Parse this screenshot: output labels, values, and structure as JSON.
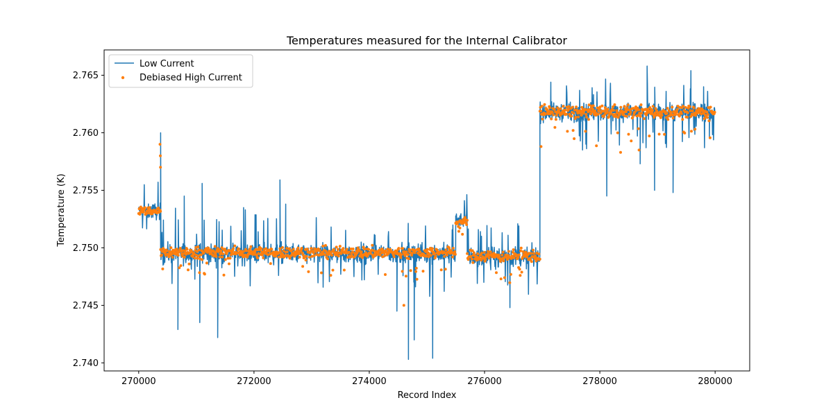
{
  "chart_data": {
    "type": "line",
    "title": "Temperatures measured for the Internal Calibrator",
    "xlabel": "Record Index",
    "ylabel": "Temperature (K)",
    "xlim": [
      269400,
      280600
    ],
    "ylim": [
      2.7393,
      2.7672
    ],
    "xticks": [
      270000,
      272000,
      274000,
      276000,
      278000,
      280000
    ],
    "xtick_labels": [
      "270000",
      "272000",
      "274000",
      "276000",
      "278000",
      "280000"
    ],
    "yticks": [
      2.74,
      2.745,
      2.75,
      2.755,
      2.76,
      2.765
    ],
    "ytick_labels": [
      "2.740",
      "2.745",
      "2.750",
      "2.755",
      "2.760",
      "2.765"
    ],
    "grid": false,
    "legend_position": "upper-left",
    "series": [
      {
        "name": "Low Current",
        "kind": "line",
        "color": "#1f77b4",
        "segments": [
          {
            "x_start": 270000,
            "x_end": 270380,
            "mean": 2.7532,
            "spread": 0.0009
          },
          {
            "x_start": 270380,
            "x_end": 275500,
            "mean": 2.7495,
            "spread": 0.0011
          },
          {
            "x_start": 275500,
            "x_end": 275700,
            "mean": 2.7525,
            "spread": 0.0008
          },
          {
            "x_start": 275700,
            "x_end": 276960,
            "mean": 2.7492,
            "spread": 0.0011
          },
          {
            "x_start": 276960,
            "x_end": 280000,
            "mean": 2.7618,
            "spread": 0.001
          }
        ],
        "spikes": [
          {
            "x": 270380,
            "y": 2.76
          },
          {
            "x": 270680,
            "y": 2.7429
          },
          {
            "x": 270790,
            "y": 2.7545
          },
          {
            "x": 271060,
            "y": 2.7435
          },
          {
            "x": 271100,
            "y": 2.7556
          },
          {
            "x": 271370,
            "y": 2.7422
          },
          {
            "x": 271820,
            "y": 2.7535
          },
          {
            "x": 272450,
            "y": 2.7559
          },
          {
            "x": 272550,
            "y": 2.7538
          },
          {
            "x": 274480,
            "y": 2.7445
          },
          {
            "x": 274680,
            "y": 2.7403
          },
          {
            "x": 274780,
            "y": 2.742
          },
          {
            "x": 275100,
            "y": 2.7404
          },
          {
            "x": 276440,
            "y": 2.7448
          },
          {
            "x": 277150,
            "y": 2.7644
          },
          {
            "x": 277700,
            "y": 2.7585
          },
          {
            "x": 278120,
            "y": 2.7545
          },
          {
            "x": 278700,
            "y": 2.7573
          },
          {
            "x": 278820,
            "y": 2.7658
          },
          {
            "x": 278950,
            "y": 2.755
          },
          {
            "x": 279270,
            "y": 2.7548
          },
          {
            "x": 279580,
            "y": 2.7654
          },
          {
            "x": 279800,
            "y": 2.764
          },
          {
            "x": 279900,
            "y": 2.7595
          }
        ]
      },
      {
        "name": "Debiased High Current",
        "kind": "scatter",
        "color": "#ff7f0e",
        "segments": [
          {
            "x_start": 270000,
            "x_end": 270380,
            "mean": 2.7532,
            "spread": 0.0005
          },
          {
            "x_start": 270380,
            "x_end": 275500,
            "mean": 2.7496,
            "spread": 0.0007
          },
          {
            "x_start": 275500,
            "x_end": 275700,
            "mean": 2.7522,
            "spread": 0.0006
          },
          {
            "x_start": 275700,
            "x_end": 276960,
            "mean": 2.7493,
            "spread": 0.0007
          },
          {
            "x_start": 276960,
            "x_end": 280000,
            "mean": 2.7618,
            "spread": 0.0008
          }
        ],
        "outliers": [
          {
            "x": 270370,
            "y": 2.759
          },
          {
            "x": 270375,
            "y": 2.758
          },
          {
            "x": 270378,
            "y": 2.757
          },
          {
            "x": 274600,
            "y": 2.745
          },
          {
            "x": 276980,
            "y": 2.7588
          },
          {
            "x": 278360,
            "y": 2.7583
          },
          {
            "x": 278680,
            "y": 2.7585
          }
        ]
      }
    ]
  }
}
